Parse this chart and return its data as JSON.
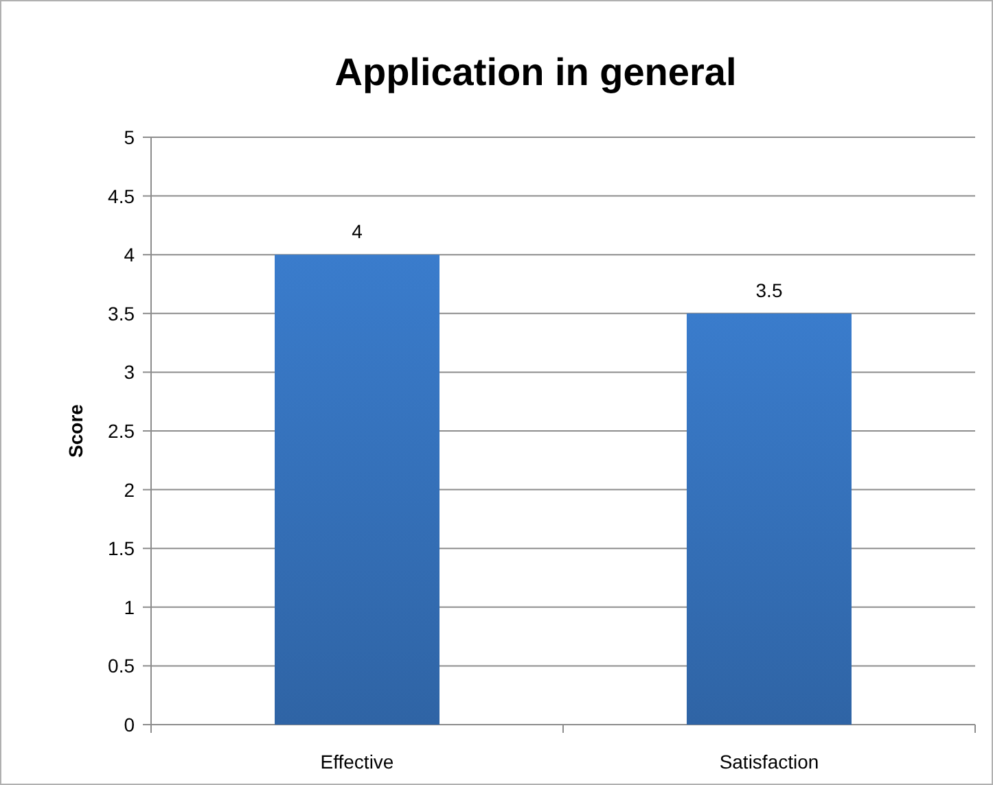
{
  "chart_data": {
    "type": "bar",
    "title": "Application in general",
    "ylabel": "Score",
    "categories": [
      "Effective",
      "Satisfaction"
    ],
    "values": [
      4,
      3.5
    ],
    "color": "#3a7ccc",
    "ylim": [
      0,
      5
    ],
    "yticks": [
      0,
      0.5,
      1,
      1.5,
      2,
      2.5,
      3,
      3.5,
      4,
      4.5,
      5
    ],
    "grid": "y",
    "data_labels": true
  }
}
